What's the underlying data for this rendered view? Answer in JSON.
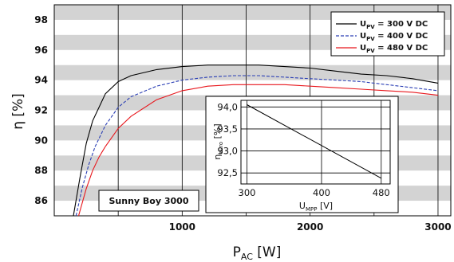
{
  "chart_data": [
    {
      "type": "line",
      "ylabel": "η [%]",
      "xlabel_main": "P",
      "xlabel_sub": "AC",
      "xlabel_unit": " [W]",
      "xlim": [
        0,
        3100
      ],
      "ylim": [
        85,
        99
      ],
      "x_ticks": [
        1000,
        2000,
        3000
      ],
      "x_tick_labels": [
        "1000",
        "2000",
        "3000"
      ],
      "y_ticks": [
        86,
        88,
        90,
        92,
        94,
        96,
        98
      ],
      "y_tick_labels": [
        "86",
        "88",
        "90",
        "92",
        "94",
        "96",
        "98"
      ],
      "grid": true,
      "legend": "top-right",
      "annotation": "Sunny Boy 3000",
      "series": [
        {
          "name": "U_PV = 300 V DC",
          "legend_main": "U",
          "legend_sub": "PV",
          "legend_rest": " = 300 V DC",
          "color": "#000000",
          "dash": "",
          "x": [
            150,
            200,
            250,
            300,
            400,
            500,
            600,
            800,
            1000,
            1200,
            1400,
            1600,
            1800,
            2000,
            2200,
            2400,
            2600,
            2800,
            3000
          ],
          "y": [
            85,
            87.5,
            89.8,
            91.3,
            93.1,
            93.9,
            94.3,
            94.7,
            94.9,
            95.0,
            95.0,
            95.0,
            94.9,
            94.8,
            94.6,
            94.4,
            94.3,
            94.1,
            93.8
          ]
        },
        {
          "name": "U_PV = 400 V DC",
          "legend_main": "U",
          "legend_sub": "PV",
          "legend_rest": " = 400 V DC",
          "color": "#2b3fb5",
          "dash": "4,2",
          "x": [
            170,
            220,
            270,
            320,
            400,
            500,
            600,
            800,
            1000,
            1200,
            1400,
            1600,
            1800,
            2000,
            2200,
            2400,
            2600,
            2800,
            3000
          ],
          "y": [
            85,
            86.9,
            88.4,
            89.6,
            91.0,
            92.2,
            92.9,
            93.6,
            94.0,
            94.2,
            94.3,
            94.3,
            94.2,
            94.1,
            94.0,
            93.9,
            93.7,
            93.5,
            93.3
          ]
        },
        {
          "name": "U_PV = 480 V DC",
          "legend_main": "U",
          "legend_sub": "PV",
          "legend_rest": " = 480 V DC",
          "color": "#e8161c",
          "dash": "",
          "x": [
            190,
            250,
            300,
            350,
            400,
            500,
            600,
            800,
            1000,
            1200,
            1400,
            1600,
            1800,
            2000,
            2200,
            2400,
            2600,
            2800,
            3000
          ],
          "y": [
            85,
            86.8,
            88.0,
            88.9,
            89.6,
            90.8,
            91.6,
            92.7,
            93.3,
            93.6,
            93.7,
            93.7,
            93.7,
            93.6,
            93.5,
            93.4,
            93.3,
            93.2,
            93.0
          ]
        }
      ]
    },
    {
      "type": "line",
      "ylabel_main": "η",
      "ylabel_sub": "euro",
      "ylabel_unit": " [%]",
      "xlabel_main": "U",
      "xlabel_sub": "MPP",
      "xlabel_unit": " [V]",
      "xlim": [
        292,
        492
      ],
      "ylim": [
        92.25,
        94.15
      ],
      "x_ticks": [
        300,
        400,
        480
      ],
      "x_tick_labels": [
        "300",
        "400",
        "480"
      ],
      "y_ticks": [
        92.5,
        93.0,
        93.5,
        94.0
      ],
      "y_tick_labels": [
        "92,5",
        "93,0",
        "93,5",
        "94,0"
      ],
      "grid": true,
      "series": [
        {
          "color": "#000000",
          "x": [
            300,
            480
          ],
          "y": [
            94.05,
            92.38
          ]
        }
      ]
    }
  ]
}
